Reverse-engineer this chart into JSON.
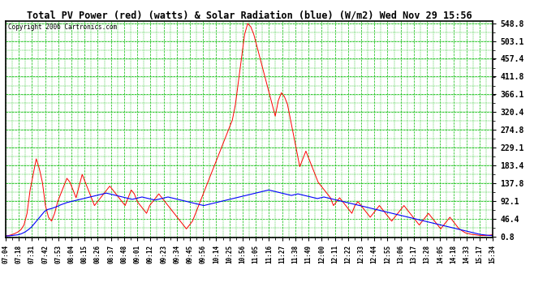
{
  "title": "Total PV Power (red) (watts) & Solar Radiation (blue) (W/m2) Wed Nov 29 15:56",
  "copyright": "Copyright 2006 Cartronics.com",
  "yticks": [
    0.8,
    46.4,
    92.1,
    137.8,
    183.4,
    229.1,
    274.8,
    320.4,
    366.1,
    411.8,
    457.4,
    503.1,
    548.8
  ],
  "xtick_labels": [
    "07:04",
    "07:18",
    "07:31",
    "07:42",
    "07:53",
    "08:04",
    "08:15",
    "08:26",
    "08:37",
    "08:48",
    "09:01",
    "09:12",
    "09:23",
    "09:34",
    "09:45",
    "09:56",
    "10:14",
    "10:25",
    "10:56",
    "11:05",
    "11:16",
    "11:27",
    "11:38",
    "11:49",
    "12:00",
    "12:11",
    "12:22",
    "12:33",
    "12:44",
    "12:55",
    "13:06",
    "13:17",
    "13:28",
    "14:05",
    "14:18",
    "14:33",
    "15:17",
    "15:34"
  ],
  "bg_color": "#ffffff",
  "plot_bg_color": "#ffffff",
  "grid_color": "#00bb00",
  "red_line_color": "#ff0000",
  "blue_line_color": "#0000ff",
  "ymin": 0.8,
  "ymax": 548.8,
  "red_data": [
    2,
    3,
    5,
    8,
    12,
    18,
    30,
    60,
    120,
    160,
    200,
    175,
    140,
    80,
    50,
    40,
    60,
    90,
    110,
    130,
    150,
    140,
    120,
    100,
    130,
    160,
    140,
    120,
    100,
    80,
    90,
    100,
    110,
    120,
    130,
    120,
    110,
    100,
    90,
    80,
    100,
    120,
    110,
    90,
    80,
    70,
    60,
    80,
    90,
    100,
    110,
    100,
    90,
    80,
    70,
    60,
    50,
    40,
    30,
    20,
    30,
    40,
    60,
    80,
    100,
    120,
    140,
    160,
    180,
    200,
    220,
    240,
    260,
    280,
    300,
    340,
    400,
    460,
    520,
    548,
    540,
    520,
    490,
    460,
    430,
    400,
    370,
    340,
    310,
    350,
    370,
    360,
    340,
    300,
    260,
    220,
    180,
    200,
    220,
    200,
    180,
    160,
    140,
    130,
    120,
    110,
    100,
    80,
    90,
    100,
    90,
    80,
    70,
    60,
    80,
    90,
    80,
    70,
    60,
    50,
    60,
    70,
    80,
    70,
    60,
    50,
    40,
    50,
    60,
    70,
    80,
    70,
    60,
    50,
    40,
    30,
    40,
    50,
    60,
    50,
    40,
    30,
    20,
    30,
    40,
    50,
    40,
    30,
    20,
    15,
    10,
    8,
    6,
    5,
    4,
    3,
    3,
    3,
    4,
    5
  ],
  "blue_data": [
    2,
    2,
    3,
    4,
    5,
    8,
    12,
    18,
    25,
    35,
    45,
    55,
    65,
    70,
    72,
    75,
    78,
    82,
    85,
    88,
    90,
    92,
    94,
    96,
    98,
    100,
    102,
    104,
    106,
    108,
    110,
    112,
    110,
    108,
    106,
    104,
    102,
    100,
    98,
    96,
    98,
    100,
    102,
    100,
    98,
    96,
    94,
    96,
    98,
    100,
    102,
    100,
    98,
    96,
    94,
    92,
    90,
    88,
    86,
    84,
    82,
    80,
    82,
    84,
    86,
    88,
    90,
    92,
    94,
    96,
    98,
    100,
    102,
    104,
    106,
    108,
    110,
    112,
    114,
    116,
    118,
    120,
    118,
    116,
    114,
    112,
    110,
    108,
    106,
    108,
    110,
    108,
    106,
    104,
    102,
    100,
    98,
    100,
    102,
    100,
    98,
    96,
    94,
    92,
    90,
    88,
    86,
    84,
    82,
    80,
    78,
    76,
    74,
    72,
    70,
    68,
    66,
    64,
    62,
    60,
    58,
    56,
    54,
    52,
    50,
    48,
    46,
    44,
    42,
    40,
    38,
    36,
    34,
    32,
    30,
    28,
    26,
    24,
    22,
    20,
    18,
    16,
    14,
    12,
    10,
    8,
    6,
    5,
    4,
    3,
    3
  ]
}
